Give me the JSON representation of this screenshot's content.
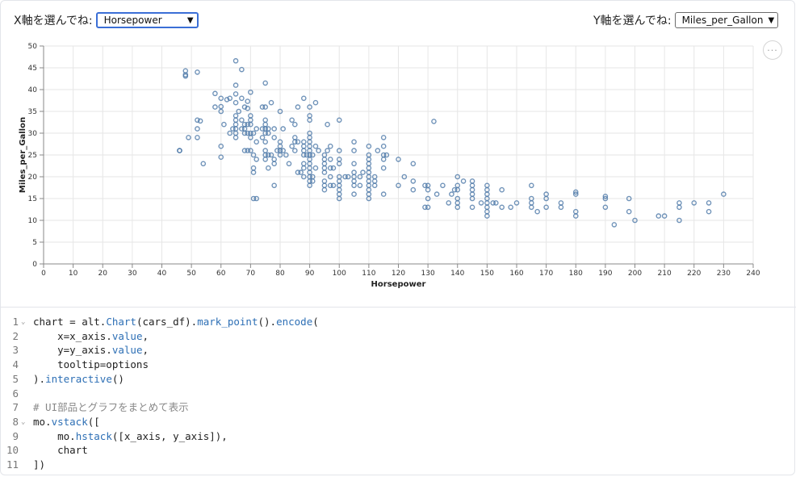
{
  "controls": {
    "x_label": "X軸を選んでね:",
    "x_value": "Horsepower",
    "y_label": "Y軸を選んでね:",
    "y_value": "Miles_per_Gallon",
    "more_icon": "ellipsis-icon"
  },
  "chart_data": {
    "type": "scatter",
    "xlabel": "Horsepower",
    "ylabel": "Miles_per_Gallon",
    "xlim": [
      0,
      240
    ],
    "ylim": [
      0,
      50
    ],
    "x_ticks": [
      0,
      10,
      20,
      30,
      40,
      50,
      60,
      70,
      80,
      90,
      100,
      110,
      120,
      130,
      140,
      150,
      160,
      170,
      180,
      190,
      200,
      210,
      220,
      230,
      240
    ],
    "y_ticks": [
      0,
      5,
      10,
      15,
      20,
      25,
      30,
      35,
      40,
      45,
      50
    ],
    "grid": true,
    "point_color": "#4c78a8",
    "points": [
      [
        46,
        26
      ],
      [
        46,
        26
      ],
      [
        48,
        43.1
      ],
      [
        48,
        44.3
      ],
      [
        48,
        43.4
      ],
      [
        49,
        29
      ],
      [
        52,
        29
      ],
      [
        52,
        31
      ],
      [
        52,
        33
      ],
      [
        52,
        44
      ],
      [
        53,
        32.8
      ],
      [
        54,
        23
      ],
      [
        58,
        36
      ],
      [
        58,
        39.1
      ],
      [
        60,
        24.5
      ],
      [
        60,
        27
      ],
      [
        60,
        35
      ],
      [
        60,
        36.1
      ],
      [
        60,
        38
      ],
      [
        61,
        32
      ],
      [
        62,
        37.7
      ],
      [
        63,
        30
      ],
      [
        63,
        38
      ],
      [
        64,
        31
      ],
      [
        65,
        29
      ],
      [
        65,
        30
      ],
      [
        65,
        31
      ],
      [
        65,
        32
      ],
      [
        65,
        33
      ],
      [
        65,
        34
      ],
      [
        65,
        37
      ],
      [
        65,
        39
      ],
      [
        65,
        41
      ],
      [
        65,
        46.6
      ],
      [
        66,
        35
      ],
      [
        67,
        31
      ],
      [
        67,
        38
      ],
      [
        67,
        44.6
      ],
      [
        67,
        33
      ],
      [
        68,
        30
      ],
      [
        68,
        31
      ],
      [
        68,
        32
      ],
      [
        68,
        36
      ],
      [
        68,
        26
      ],
      [
        69,
        26
      ],
      [
        69,
        30
      ],
      [
        69,
        32
      ],
      [
        69,
        35.7
      ],
      [
        69,
        37.3
      ],
      [
        70,
        29
      ],
      [
        70,
        30
      ],
      [
        70,
        32
      ],
      [
        70,
        33
      ],
      [
        70,
        34
      ],
      [
        70,
        26
      ],
      [
        70,
        39.4
      ],
      [
        71,
        15
      ],
      [
        71,
        22
      ],
      [
        71,
        21
      ],
      [
        71,
        25
      ],
      [
        71,
        30
      ],
      [
        72,
        15
      ],
      [
        72,
        24
      ],
      [
        72,
        28
      ],
      [
        72,
        31
      ],
      [
        74,
        36
      ],
      [
        74,
        31
      ],
      [
        74,
        29
      ],
      [
        75,
        24
      ],
      [
        75,
        25
      ],
      [
        75,
        26
      ],
      [
        75,
        28
      ],
      [
        75,
        30
      ],
      [
        75,
        31
      ],
      [
        75,
        32
      ],
      [
        75,
        33
      ],
      [
        75,
        41.5
      ],
      [
        75,
        36
      ],
      [
        76,
        22
      ],
      [
        76,
        25
      ],
      [
        76,
        30
      ],
      [
        76,
        31
      ],
      [
        77,
        25
      ],
      [
        77,
        37
      ],
      [
        78,
        18
      ],
      [
        78,
        23
      ],
      [
        78,
        24
      ],
      [
        78,
        29
      ],
      [
        78,
        31
      ],
      [
        79,
        26
      ],
      [
        80,
        25
      ],
      [
        80,
        26
      ],
      [
        80,
        27
      ],
      [
        80,
        28
      ],
      [
        80,
        35
      ],
      [
        81,
        26
      ],
      [
        81,
        31
      ],
      [
        82,
        25
      ],
      [
        83,
        23
      ],
      [
        84,
        27
      ],
      [
        84,
        33
      ],
      [
        85,
        26
      ],
      [
        85,
        28
      ],
      [
        85,
        29
      ],
      [
        85,
        32
      ],
      [
        86,
        21
      ],
      [
        86,
        28
      ],
      [
        86,
        36
      ],
      [
        87,
        21
      ],
      [
        88,
        20
      ],
      [
        88,
        22
      ],
      [
        88,
        23
      ],
      [
        88,
        25
      ],
      [
        88,
        26
      ],
      [
        88,
        27
      ],
      [
        88,
        28
      ],
      [
        88,
        38
      ],
      [
        89,
        25
      ],
      [
        90,
        18
      ],
      [
        90,
        19
      ],
      [
        90,
        20
      ],
      [
        90,
        21
      ],
      [
        90,
        22
      ],
      [
        90,
        23
      ],
      [
        90,
        24
      ],
      [
        90,
        25
      ],
      [
        90,
        26
      ],
      [
        90,
        27
      ],
      [
        90,
        28
      ],
      [
        90,
        29
      ],
      [
        90,
        30
      ],
      [
        90,
        33
      ],
      [
        90,
        34
      ],
      [
        90,
        36
      ],
      [
        91,
        19
      ],
      [
        91,
        20
      ],
      [
        91,
        25
      ],
      [
        92,
        22
      ],
      [
        92,
        27
      ],
      [
        92,
        37
      ],
      [
        93,
        26
      ],
      [
        95,
        17
      ],
      [
        95,
        18
      ],
      [
        95,
        19
      ],
      [
        95,
        21
      ],
      [
        95,
        22
      ],
      [
        95,
        23
      ],
      [
        95,
        24
      ],
      [
        95,
        25
      ],
      [
        96,
        26
      ],
      [
        96,
        32
      ],
      [
        97,
        18
      ],
      [
        97,
        20
      ],
      [
        97,
        22
      ],
      [
        97,
        24
      ],
      [
        97,
        27
      ],
      [
        98,
        18
      ],
      [
        98,
        22
      ],
      [
        100,
        15
      ],
      [
        100,
        16
      ],
      [
        100,
        17
      ],
      [
        100,
        18
      ],
      [
        100,
        19
      ],
      [
        100,
        20
      ],
      [
        100,
        23
      ],
      [
        100,
        24
      ],
      [
        100,
        26
      ],
      [
        100,
        33
      ],
      [
        102,
        20
      ],
      [
        103,
        20
      ],
      [
        105,
        16
      ],
      [
        105,
        18
      ],
      [
        105,
        19
      ],
      [
        105,
        20
      ],
      [
        105,
        21
      ],
      [
        105,
        23
      ],
      [
        105,
        26
      ],
      [
        105,
        28
      ],
      [
        107,
        18
      ],
      [
        107,
        20
      ],
      [
        108,
        21
      ],
      [
        110,
        15
      ],
      [
        110,
        16
      ],
      [
        110,
        17
      ],
      [
        110,
        18
      ],
      [
        110,
        19
      ],
      [
        110,
        20
      ],
      [
        110,
        21
      ],
      [
        110,
        22
      ],
      [
        110,
        23
      ],
      [
        110,
        24
      ],
      [
        110,
        25
      ],
      [
        110,
        27
      ],
      [
        112,
        18
      ],
      [
        112,
        19
      ],
      [
        112,
        20
      ],
      [
        113,
        26
      ],
      [
        115,
        16
      ],
      [
        115,
        22
      ],
      [
        115,
        24
      ],
      [
        115,
        25
      ],
      [
        115,
        27
      ],
      [
        115,
        29
      ],
      [
        116,
        25
      ],
      [
        120,
        18
      ],
      [
        120,
        24
      ],
      [
        122,
        20
      ],
      [
        125,
        17
      ],
      [
        125,
        19
      ],
      [
        125,
        23
      ],
      [
        129,
        13
      ],
      [
        129,
        18
      ],
      [
        130,
        13
      ],
      [
        130,
        15
      ],
      [
        130,
        17
      ],
      [
        130,
        18
      ],
      [
        132,
        32.7
      ],
      [
        133,
        16
      ],
      [
        135,
        18
      ],
      [
        137,
        14
      ],
      [
        138,
        16
      ],
      [
        139,
        17
      ],
      [
        140,
        13
      ],
      [
        140,
        14
      ],
      [
        140,
        15
      ],
      [
        140,
        17
      ],
      [
        140,
        18
      ],
      [
        140,
        20
      ],
      [
        142,
        19
      ],
      [
        145,
        13
      ],
      [
        145,
        15
      ],
      [
        145,
        16
      ],
      [
        145,
        17
      ],
      [
        145,
        18
      ],
      [
        145,
        19
      ],
      [
        148,
        14
      ],
      [
        150,
        11
      ],
      [
        150,
        13
      ],
      [
        150,
        14
      ],
      [
        150,
        15
      ],
      [
        150,
        16
      ],
      [
        150,
        17
      ],
      [
        150,
        18
      ],
      [
        150,
        12
      ],
      [
        152,
        14
      ],
      [
        153,
        14
      ],
      [
        155,
        13
      ],
      [
        155,
        17
      ],
      [
        158,
        13
      ],
      [
        160,
        14
      ],
      [
        165,
        13
      ],
      [
        165,
        14
      ],
      [
        165,
        15
      ],
      [
        165,
        18
      ],
      [
        167,
        12
      ],
      [
        170,
        13
      ],
      [
        170,
        15
      ],
      [
        170,
        16
      ],
      [
        175,
        13
      ],
      [
        175,
        14
      ],
      [
        180,
        11
      ],
      [
        180,
        12
      ],
      [
        180,
        16
      ],
      [
        180,
        16.5
      ],
      [
        190,
        13
      ],
      [
        190,
        15
      ],
      [
        190,
        15.5
      ],
      [
        193,
        9
      ],
      [
        198,
        12
      ],
      [
        198,
        15
      ],
      [
        200,
        10
      ],
      [
        208,
        11
      ],
      [
        210,
        11
      ],
      [
        215,
        10
      ],
      [
        215,
        13
      ],
      [
        215,
        14
      ],
      [
        220,
        14
      ],
      [
        225,
        12
      ],
      [
        225,
        14
      ],
      [
        230,
        16
      ]
    ]
  },
  "code": {
    "lines": [
      {
        "n": "1",
        "fold": true,
        "html": "chart = alt.<span class=\"fn\">Chart</span>(cars_df).<span class=\"fn\">mark_point</span>().<span class=\"fn\">encode</span>("
      },
      {
        "n": "2",
        "fold": false,
        "html": "    x=x_axis.<span class=\"fn\">value</span>,"
      },
      {
        "n": "3",
        "fold": false,
        "html": "    y=y_axis.<span class=\"fn\">value</span>,"
      },
      {
        "n": "4",
        "fold": false,
        "html": "    tooltip=options"
      },
      {
        "n": "5",
        "fold": false,
        "html": ").<span class=\"fn\">interactive</span>()"
      },
      {
        "n": "6",
        "fold": false,
        "html": ""
      },
      {
        "n": "7",
        "fold": false,
        "html": "<span class=\"cm\"># UI部品とグラフをまとめて表示</span>"
      },
      {
        "n": "8",
        "fold": true,
        "html": "mo.<span class=\"fn\">vstack</span>(["
      },
      {
        "n": "9",
        "fold": false,
        "html": "    mo.<span class=\"fn\">hstack</span>([x_axis, y_axis]),"
      },
      {
        "n": "10",
        "fold": false,
        "html": "    chart"
      },
      {
        "n": "11",
        "fold": false,
        "html": "])"
      }
    ]
  }
}
